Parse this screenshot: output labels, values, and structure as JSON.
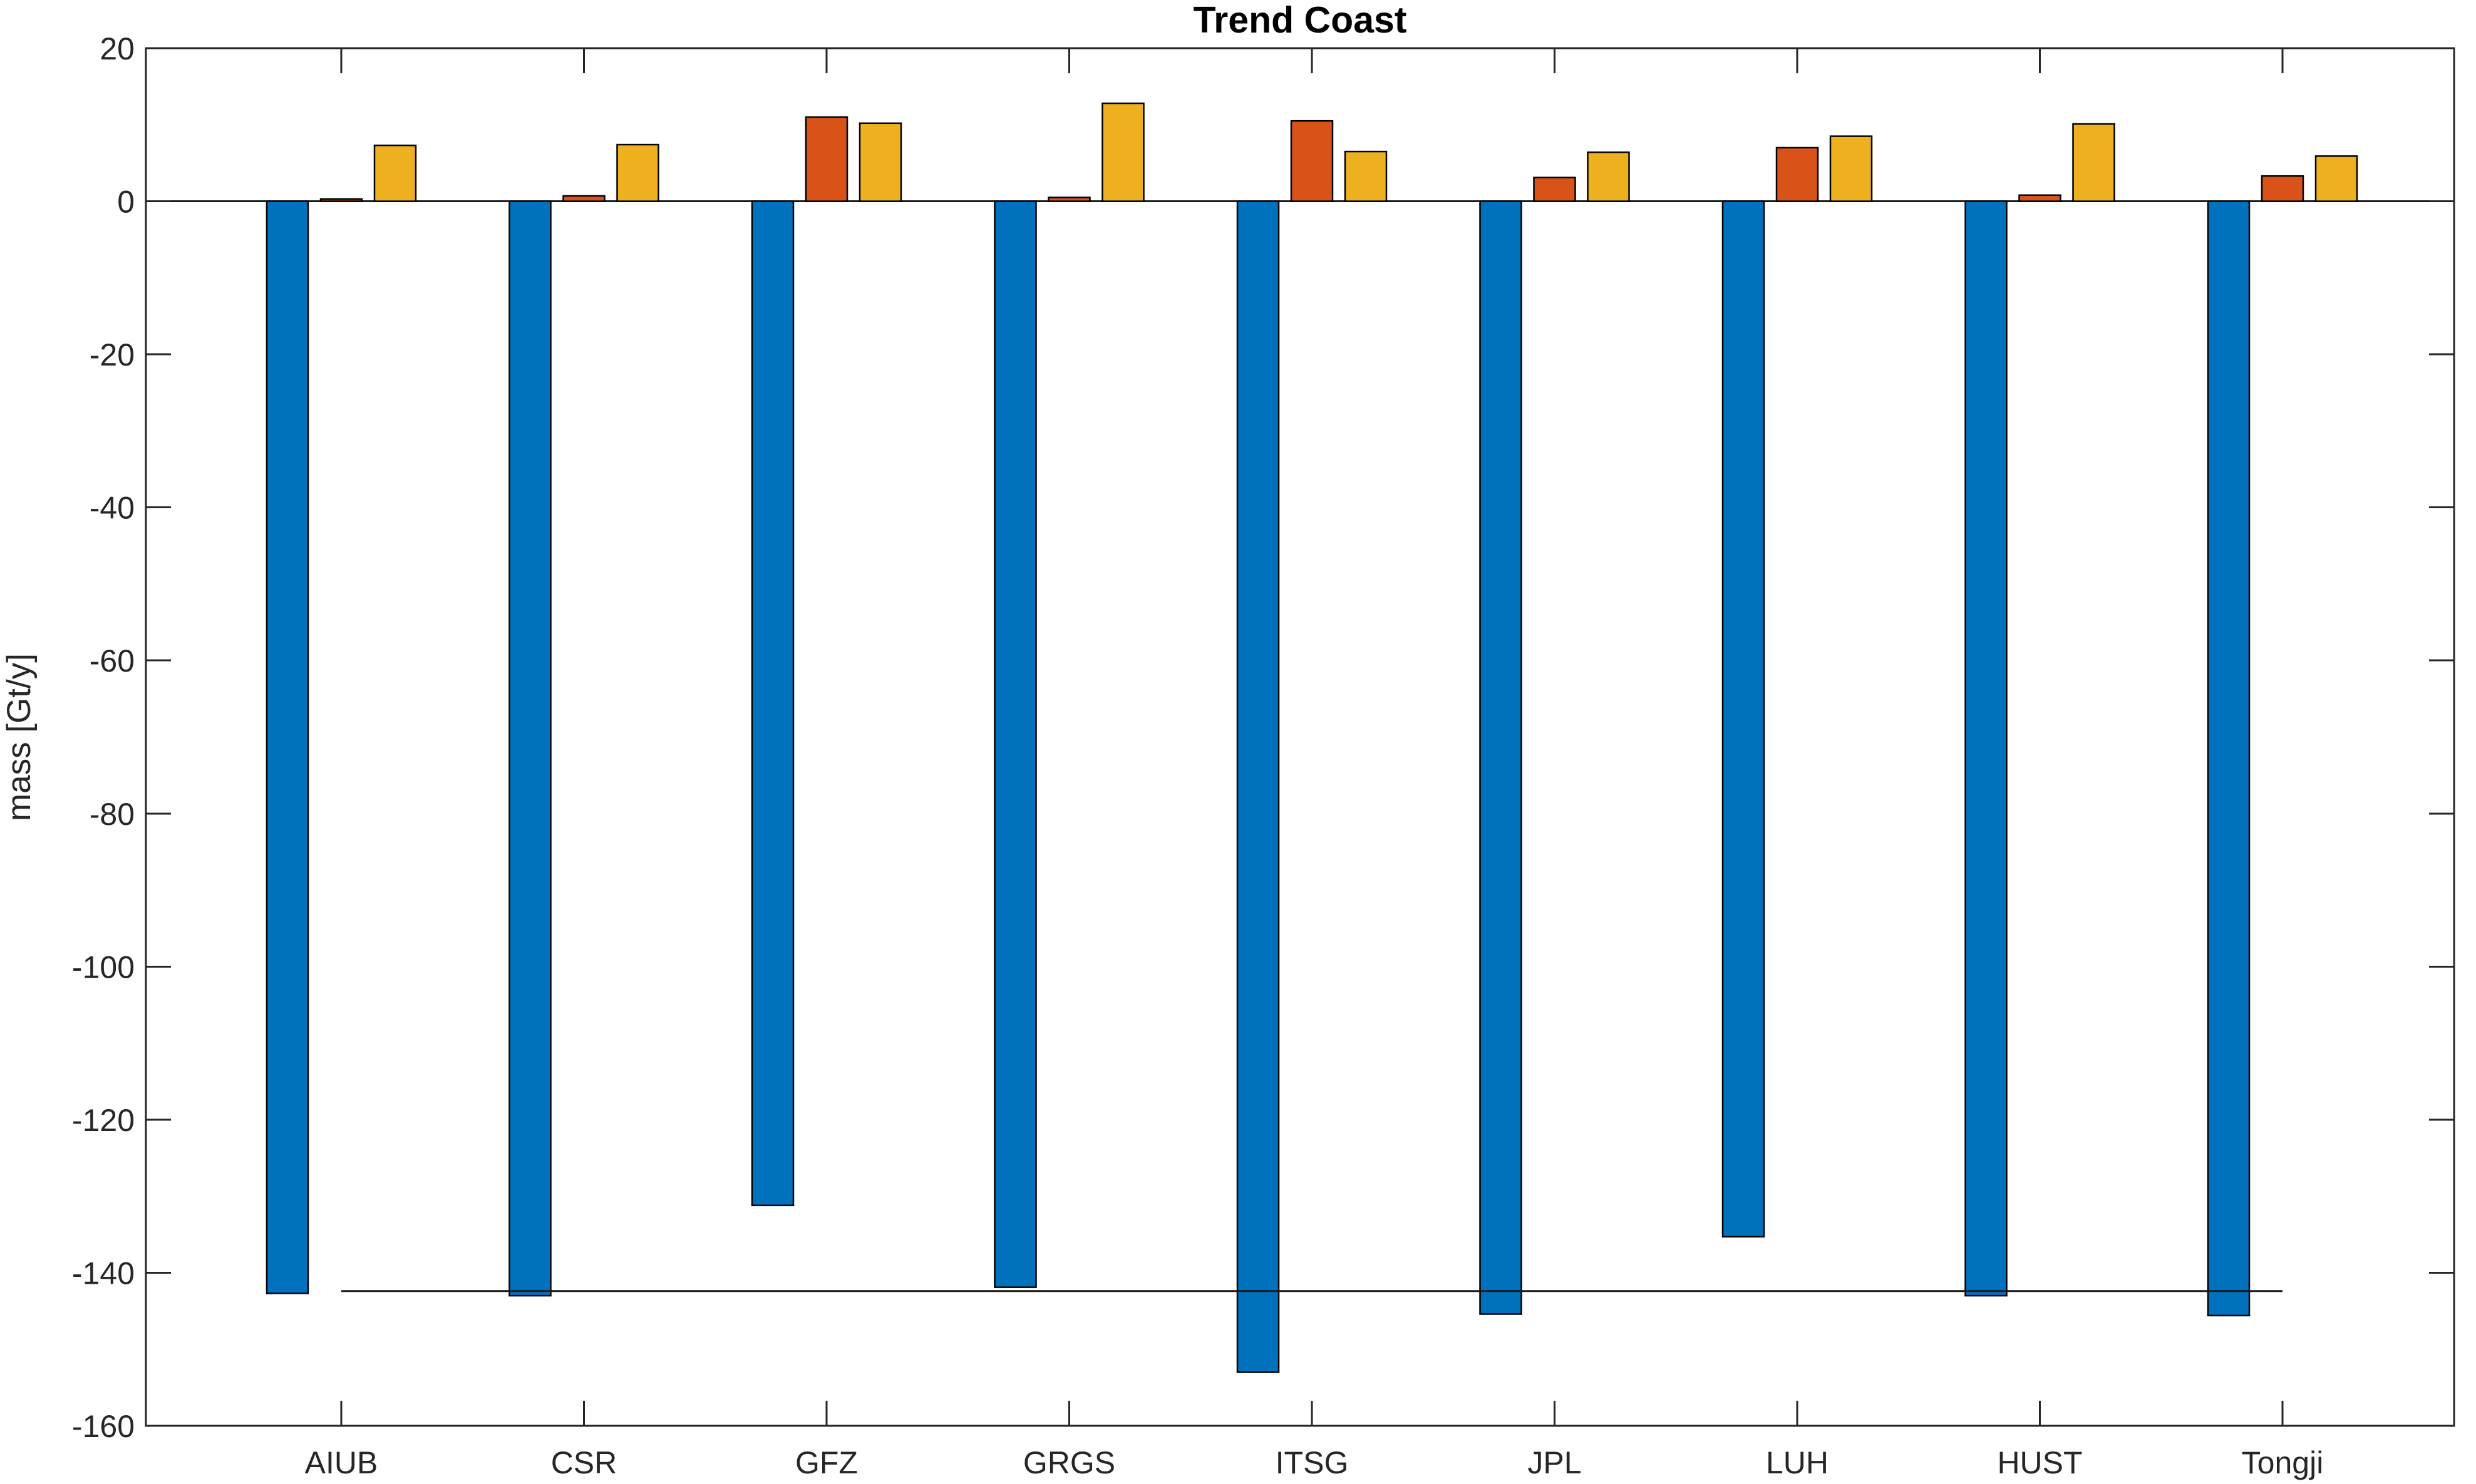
{
  "title": "Trend Coast",
  "ylabel": "mass [Gt/y]",
  "colors": {
    "series1_blue": "#0072BD",
    "series2_orange": "#D95319",
    "series3_yellow": "#EDB120",
    "bar_edge": "#000000",
    "axis": "#262626",
    "baseline": "#1a1a1a",
    "reference_line": "#1a1a1a",
    "background": "#ffffff",
    "title_color": "#000000"
  },
  "chart_data": {
    "type": "bar",
    "title": "Trend Coast",
    "xlabel": "",
    "ylabel": "mass [Gt/y]",
    "categories": [
      "AIUB",
      "CSR",
      "GFZ",
      "GRGS",
      "ITSG",
      "JPL",
      "LUH",
      "HUST",
      "Tongji"
    ],
    "series": [
      {
        "name": "series-1-blue",
        "color": "#0072BD",
        "values": [
          -142.7,
          -143.0,
          -131.2,
          -141.9,
          -153.0,
          -145.4,
          -135.3,
          -143.0,
          -145.6
        ]
      },
      {
        "name": "series-2-orange",
        "color": "#D95319",
        "values": [
          0.3,
          0.7,
          11.0,
          0.5,
          10.5,
          3.1,
          7.0,
          0.8,
          3.3
        ]
      },
      {
        "name": "series-3-yellow",
        "color": "#EDB120",
        "values": [
          7.3,
          7.4,
          10.2,
          12.8,
          6.5,
          6.4,
          8.5,
          10.1,
          5.9
        ]
      }
    ],
    "reference_line": {
      "value": -142.4,
      "from_category": "AIUB",
      "to_category": "Tongji"
    },
    "ylim": [
      -160,
      20
    ],
    "yticks": [
      20,
      0,
      -20,
      -40,
      -60,
      -80,
      -100,
      -120,
      -140,
      -160
    ],
    "ytick_labels": [
      "20",
      "0",
      "-20",
      "-40",
      "-60",
      "-80",
      "-100",
      "-120",
      "-140",
      "-160"
    ],
    "grid": false,
    "legend": "none",
    "baseline_value": 0
  }
}
